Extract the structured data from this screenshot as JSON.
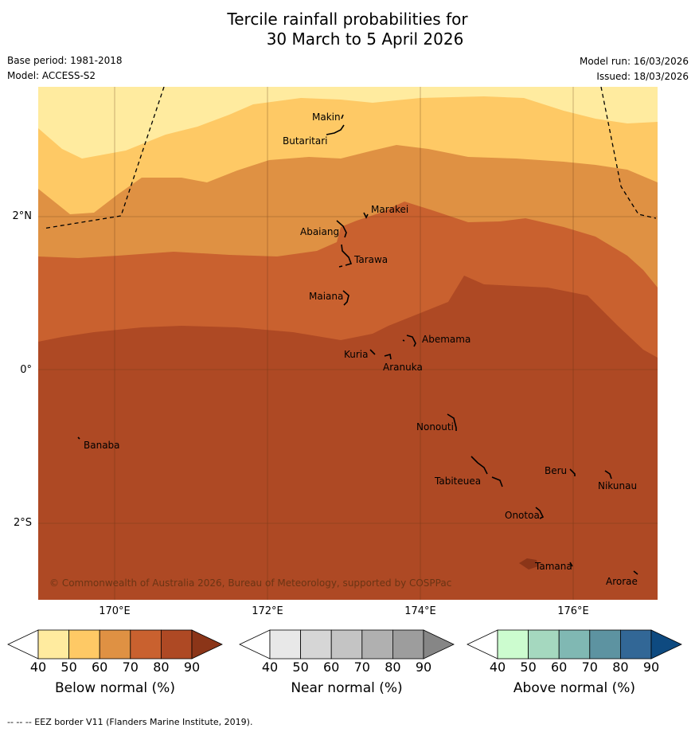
{
  "title": {
    "line1": "Tercile rainfall probabilities for",
    "line2": "30 March to 5 April 2026"
  },
  "meta": {
    "base_period": "Base period: 1981-2018",
    "model": "Model: ACCESS-S2",
    "model_run": "Model run: 16/03/2026",
    "issued": "Issued: 18/03/2026"
  },
  "axes": {
    "lat_labels": [
      "2°N",
      "0°",
      "2°S"
    ],
    "lon_labels": [
      "170°E",
      "172°E",
      "174°E",
      "176°E"
    ]
  },
  "map": {
    "islands": [
      "Makin",
      "Butaritari",
      "Marakei",
      "Abaiang",
      "Tarawa",
      "Maiana",
      "Abemama",
      "Kuria",
      "Aranuka",
      "Nonouti",
      "Banaba",
      "Beru",
      "Nikunau",
      "Tabiteuea",
      "Onotoa",
      "Tamana",
      "Arorae"
    ],
    "copyright": "© Commonwealth of Australia 2026, Bureau of Meteorology, supported by COSPPac"
  },
  "colorbars": [
    {
      "label": "Below normal (%)",
      "ticks": [
        "40",
        "50",
        "60",
        "70",
        "80",
        "90"
      ],
      "colors": [
        "#ffeb9f",
        "#fec965",
        "#df9143",
        "#c9612f",
        "#ae4924",
        "#8b3518"
      ]
    },
    {
      "label": "Near normal (%)",
      "ticks": [
        "40",
        "50",
        "60",
        "70",
        "80",
        "90"
      ],
      "colors": [
        "#e8e8e8",
        "#d6d6d6",
        "#c4c4c4",
        "#b0b0b0",
        "#9d9d9d",
        "#868686"
      ]
    },
    {
      "label": "Above normal (%)",
      "ticks": [
        "40",
        "50",
        "60",
        "70",
        "80",
        "90"
      ],
      "colors": [
        "#ccfccf",
        "#a5d8bf",
        "#80b8b3",
        "#5d93a1",
        "#326796",
        "#0e4a80"
      ]
    }
  ],
  "footnote": "--  --  -- EEZ border V11 (Flanders Marine Institute, 2019)."
}
